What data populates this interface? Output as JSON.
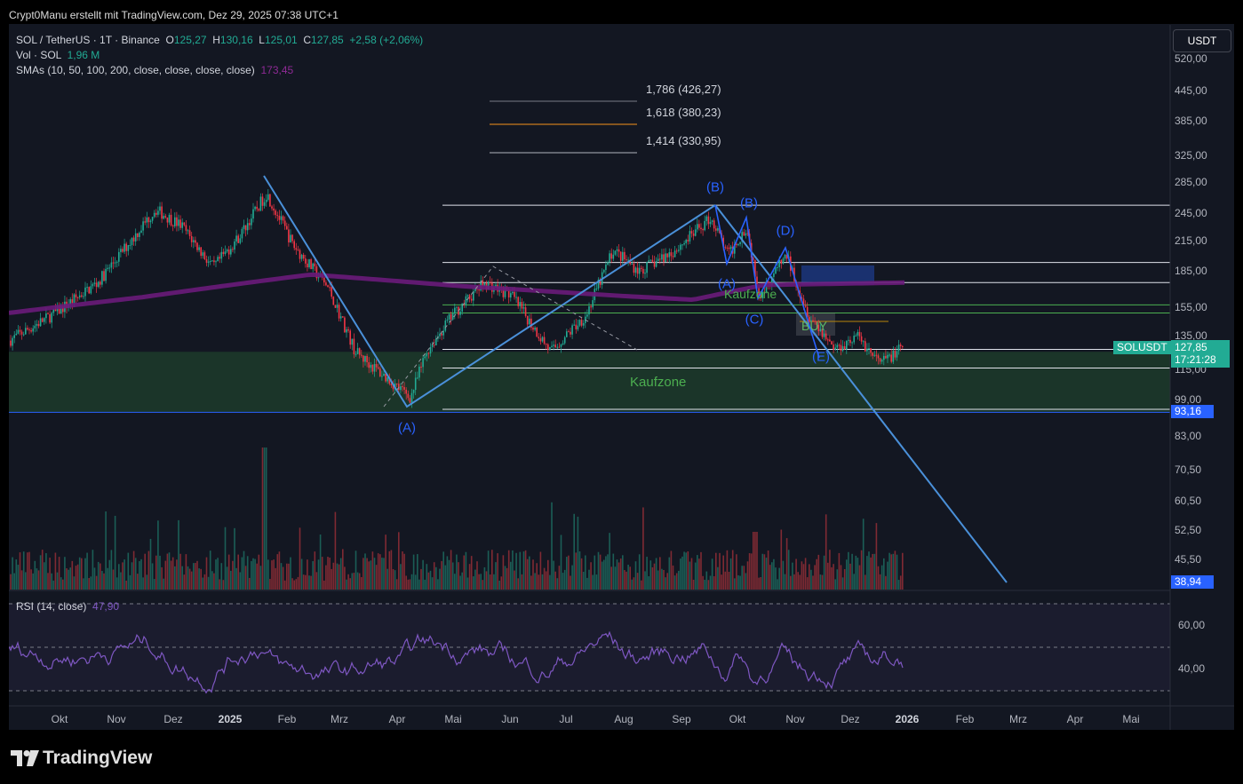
{
  "header": "Crypt0Manu erstellt mit TradingView.com, Dez 29, 2025 07:38 UTC+1",
  "legend": {
    "symbol": "SOL / TetherUS · 1T · Binance",
    "o_label": "O",
    "o": "125,27",
    "h_label": "H",
    "h": "130,16",
    "l_label": "L",
    "l": "125,01",
    "c_label": "C",
    "c": "127,85",
    "change": "+2,58 (+2,06%)",
    "vol_label": "Vol · SOL",
    "vol": "1,96 M",
    "sma_label": "SMAs (10, 50, 100, 200, close, close, close, close)",
    "sma": "173,45"
  },
  "unit_button": "USDT",
  "fib_levels": [
    {
      "label": "1,786 (426,27)",
      "color": "#787b86"
    },
    {
      "label": "1,618 (380,23)",
      "color": "#f7931a"
    },
    {
      "label": "1,414 (330,95)",
      "color": "#b2b5be"
    }
  ],
  "price_scale": [
    {
      "label": "520,00",
      "y": 520
    },
    {
      "label": "445,00",
      "y": 445
    },
    {
      "label": "385,00",
      "y": 385
    },
    {
      "label": "325,00",
      "y": 325
    },
    {
      "label": "285,00",
      "y": 285
    },
    {
      "label": "245,00",
      "y": 245
    },
    {
      "label": "215,00",
      "y": 215
    },
    {
      "label": "185,00",
      "y": 185
    },
    {
      "label": "155,00",
      "y": 155
    },
    {
      "label": "135,00",
      "y": 135
    },
    {
      "label": "115,00",
      "y": 115
    },
    {
      "label": "99,00",
      "y": 99
    },
    {
      "label": "83,00",
      "y": 83
    },
    {
      "label": "70,50",
      "y": 70.5
    },
    {
      "label": "60,50",
      "y": 60.5
    },
    {
      "label": "52,50",
      "y": 52.5
    },
    {
      "label": "45,50",
      "y": 45.5
    }
  ],
  "price_tags": {
    "symbol": "SOLUSDT",
    "last": "127,85",
    "countdown": "17:21:28",
    "support": "93,16",
    "target": "38,94"
  },
  "rsi": {
    "title": "RSI (14, close)",
    "value": "47,90",
    "ticks": [
      "60,00",
      "40,00"
    ]
  },
  "time_axis": [
    "Okt",
    "Nov",
    "Dez",
    "2025",
    "Feb",
    "Mrz",
    "Apr",
    "Mai",
    "Jun",
    "Jul",
    "Aug",
    "Sep",
    "Okt",
    "Nov",
    "Dez",
    "2026",
    "Feb",
    "Mrz",
    "Apr",
    "Mai"
  ],
  "wave_labels": [
    {
      "text": "(A)",
      "x": 458,
      "y": 482
    },
    {
      "text": "(B)",
      "x": 805,
      "y": 211
    },
    {
      "text": "(B)",
      "x": 843,
      "y": 229
    },
    {
      "text": "(D)",
      "x": 884,
      "y": 260
    },
    {
      "text": "(A)",
      "x": 818,
      "y": 320
    },
    {
      "text": "(C)",
      "x": 849,
      "y": 360
    },
    {
      "text": "(E)",
      "x": 924,
      "y": 402
    }
  ],
  "zones": {
    "main": "Kaufzone",
    "small": "Kaufzone",
    "buy": "BUY"
  },
  "brand": "TradingView",
  "chart_data": {
    "type": "candlestick",
    "title": "SOL / TetherUS · 1T · Binance",
    "xlabel": "",
    "ylabel": "USDT",
    "x": [
      "Okt",
      "Nov",
      "Dez",
      "2025",
      "Feb",
      "Mrz",
      "Apr",
      "Mai",
      "Jun",
      "Jul",
      "Aug",
      "Sep",
      "Okt",
      "Nov",
      "Dez"
    ],
    "series": [
      {
        "name": "SOLUSDT",
        "values": [
          150,
          180,
          235,
          195,
          230,
          145,
          110,
          150,
          160,
          155,
          185,
          230,
          210,
          145,
          127.85
        ]
      },
      {
        "name": "SMA 200",
        "values": [
          152,
          160,
          175,
          180,
          180,
          176,
          170,
          166,
          162,
          160,
          158,
          160,
          170,
          172,
          173.45
        ]
      }
    ],
    "ylim": [
      38.94,
      520
    ],
    "log_scale": true,
    "annotations": {
      "support": 93.16,
      "target": 38.94,
      "last": 127.85,
      "fib": [
        426.27,
        380.23,
        330.95
      ],
      "kaufzone": [
        93.16,
        125
      ]
    }
  }
}
